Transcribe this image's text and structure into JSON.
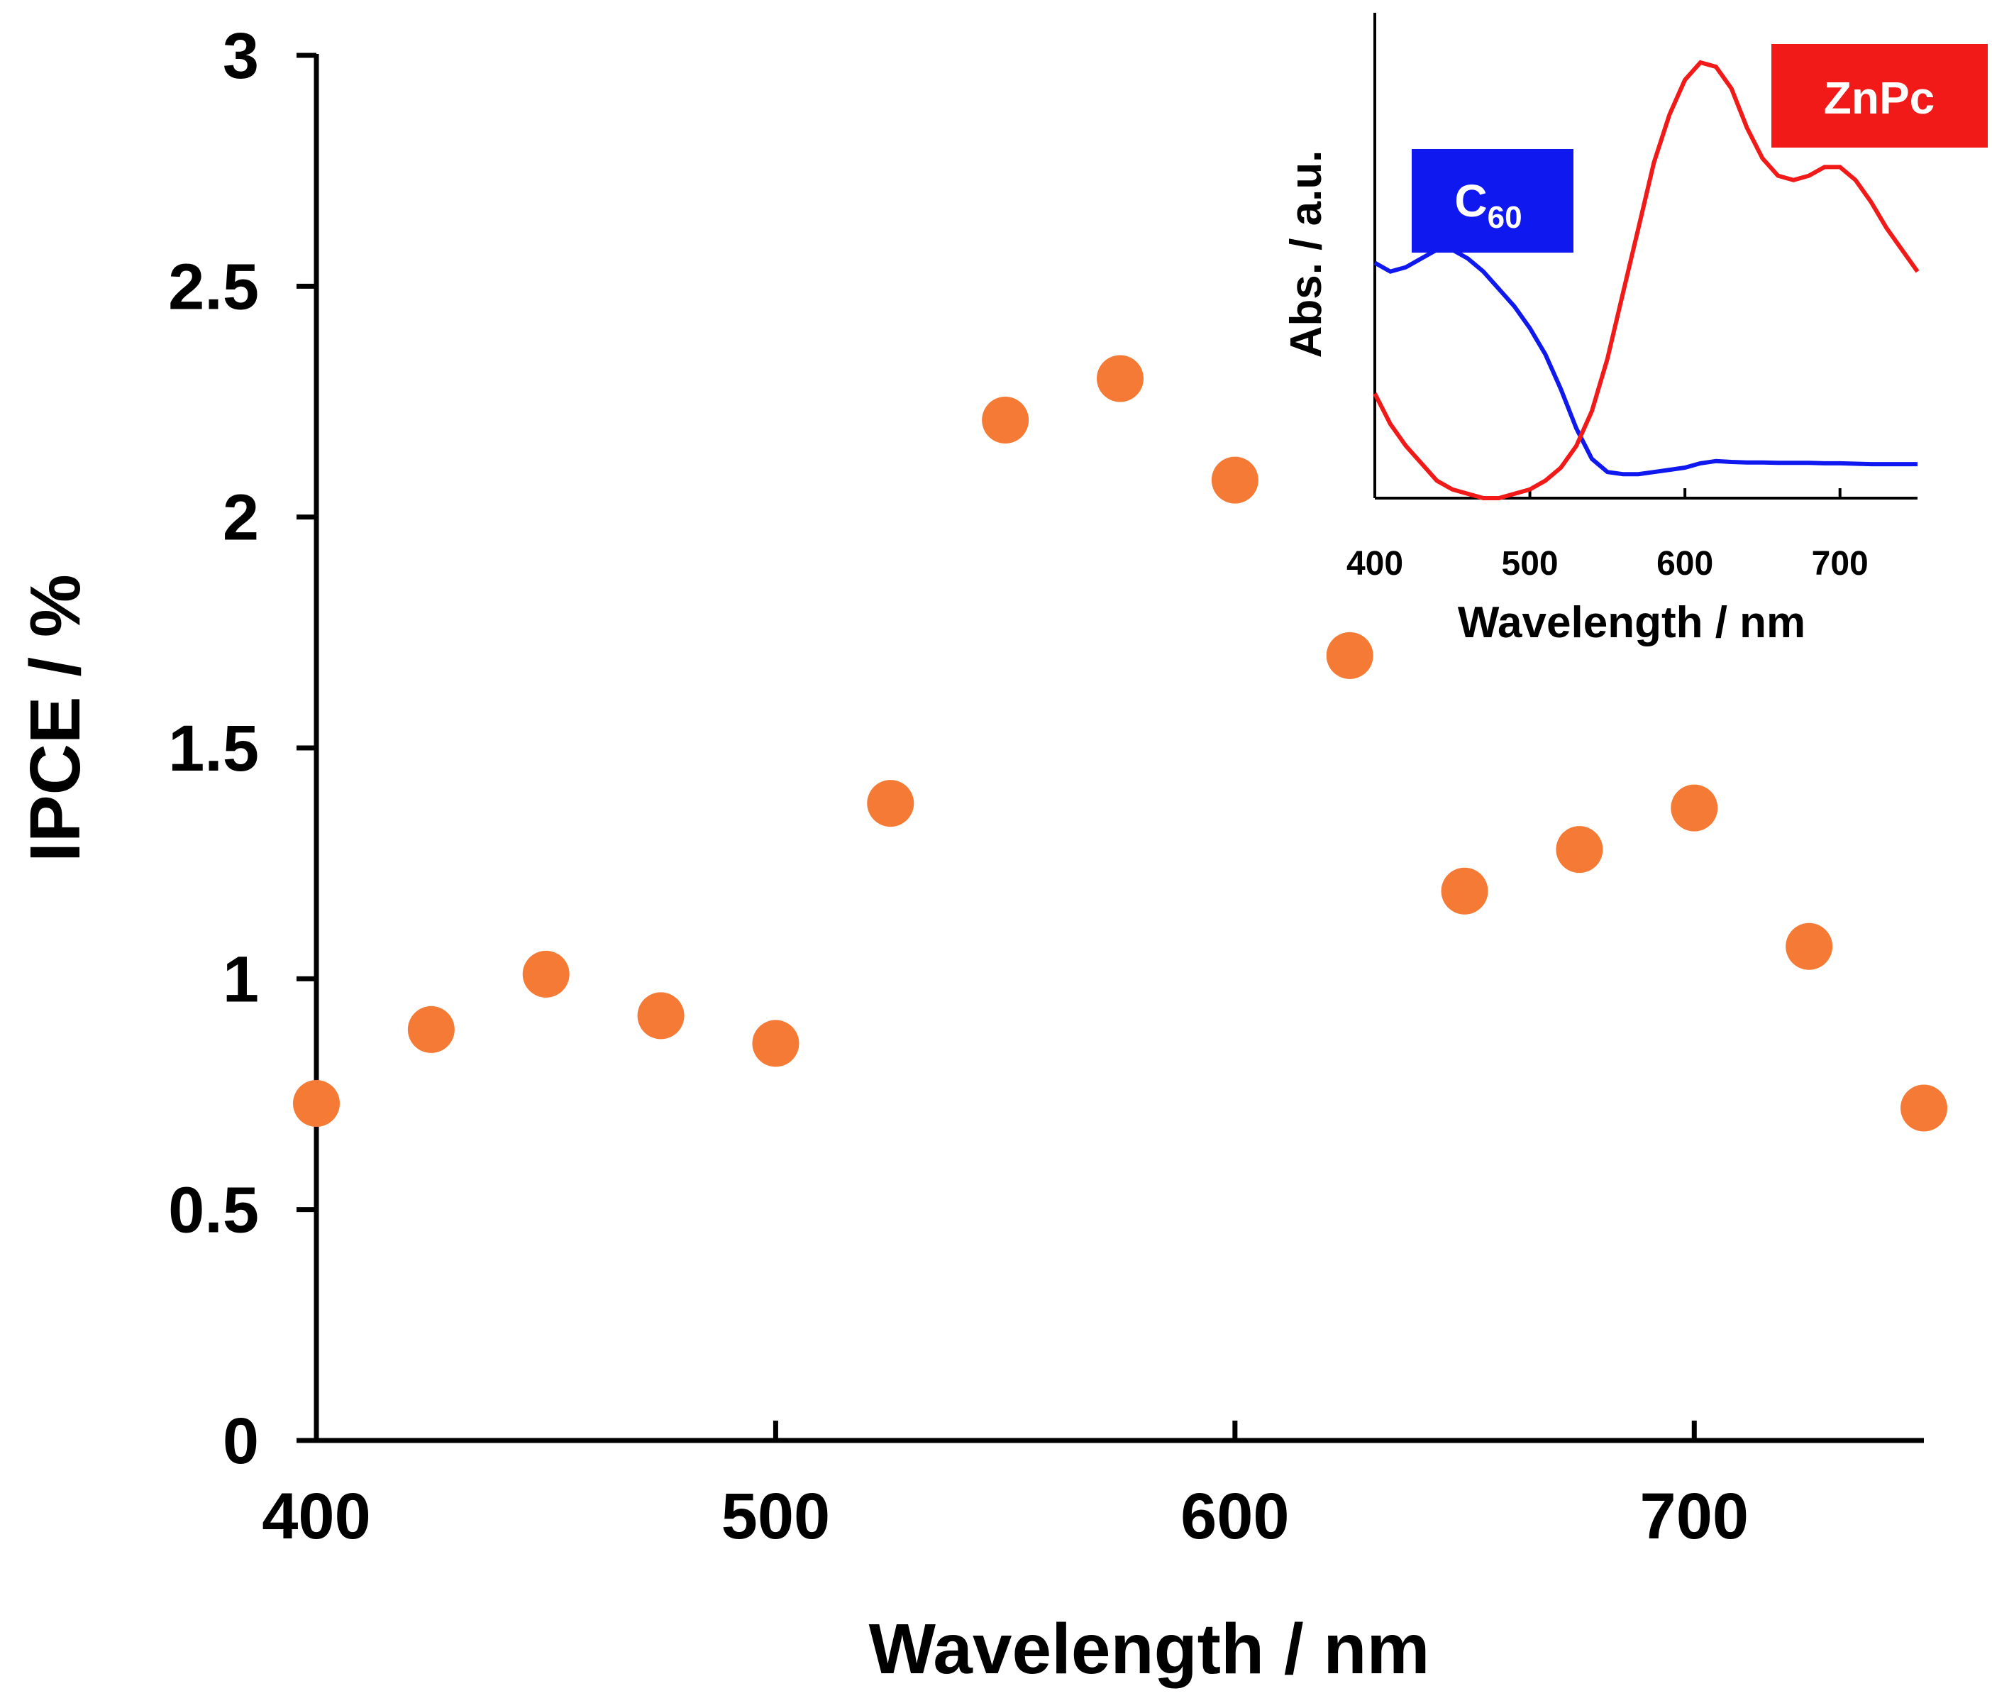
{
  "chart_data": [
    {
      "type": "scatter",
      "xlabel": "Wavelength / nm",
      "ylabel": "IPCE / %",
      "xlim": [
        400,
        750
      ],
      "ylim": [
        0,
        3
      ],
      "xticks": [
        "400",
        "500",
        "600",
        "700"
      ],
      "yticks": [
        "0",
        "0.5",
        "1",
        "1.5",
        "2",
        "2.5",
        "3"
      ],
      "grid": false,
      "marker_color": "#F47A35",
      "series": [
        {
          "x": [
            400,
            425,
            450,
            475,
            500,
            525,
            550,
            575,
            600,
            625,
            650,
            675,
            700,
            725,
            750
          ],
          "y": [
            0.73,
            0.89,
            1.01,
            0.92,
            0.86,
            1.38,
            2.21,
            2.3,
            2.08,
            1.7,
            1.19,
            1.28,
            1.37,
            1.07,
            0.72
          ]
        }
      ]
    },
    {
      "type": "line",
      "xlabel": "Wavelength / nm",
      "ylabel": "Abs. / a.u.",
      "xlim": [
        400,
        750
      ],
      "xticks": [
        "400",
        "500",
        "600",
        "700"
      ],
      "ylim": [
        0,
        1
      ],
      "grid": false,
      "legend": [
        {
          "label": "C",
          "subscript": "60",
          "color": "#0F18EE"
        },
        {
          "label": "ZnPc",
          "color": "#F21A18"
        }
      ],
      "series": [
        {
          "name": "C60",
          "color": "#0F18EE",
          "x": [
            400,
            410,
            420,
            430,
            440,
            450,
            460,
            470,
            480,
            490,
            500,
            510,
            520,
            530,
            540,
            550,
            560,
            570,
            580,
            590,
            600,
            610,
            620,
            630,
            640,
            650,
            660,
            670,
            680,
            690,
            700,
            710,
            720,
            730,
            740,
            750
          ],
          "y": [
            0.54,
            0.52,
            0.53,
            0.55,
            0.57,
            0.57,
            0.55,
            0.52,
            0.48,
            0.44,
            0.39,
            0.33,
            0.25,
            0.16,
            0.09,
            0.06,
            0.055,
            0.055,
            0.06,
            0.065,
            0.07,
            0.08,
            0.085,
            0.083,
            0.082,
            0.082,
            0.081,
            0.081,
            0.081,
            0.08,
            0.08,
            0.079,
            0.078,
            0.078,
            0.078,
            0.078
          ]
        },
        {
          "name": "ZnPc",
          "color": "#F21A18",
          "x": [
            400,
            410,
            420,
            430,
            440,
            450,
            460,
            470,
            480,
            490,
            500,
            510,
            520,
            530,
            540,
            550,
            560,
            570,
            580,
            590,
            600,
            610,
            620,
            630,
            640,
            650,
            660,
            670,
            680,
            690,
            700,
            710,
            720,
            730,
            740,
            750
          ],
          "y": [
            0.24,
            0.17,
            0.12,
            0.08,
            0.04,
            0.02,
            0.01,
            0.0,
            0.0,
            0.01,
            0.02,
            0.04,
            0.07,
            0.12,
            0.2,
            0.32,
            0.47,
            0.62,
            0.77,
            0.88,
            0.96,
            1.0,
            0.99,
            0.94,
            0.85,
            0.78,
            0.74,
            0.73,
            0.74,
            0.76,
            0.76,
            0.73,
            0.68,
            0.62,
            0.57,
            0.52
          ]
        }
      ]
    }
  ]
}
